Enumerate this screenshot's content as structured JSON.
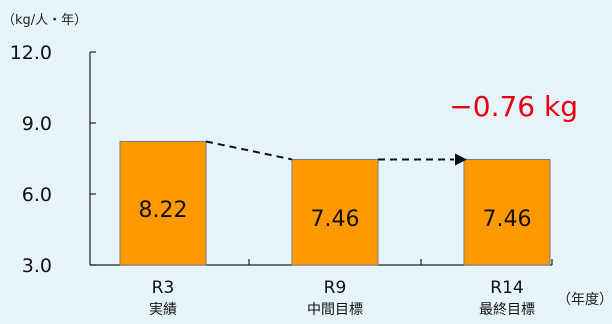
{
  "chart_data": {
    "type": "bar",
    "y_unit_label": "（kg/人・年）",
    "x_unit_label": "（年度）",
    "ylim": [
      3.0,
      12.0
    ],
    "yticks": [
      "3.0",
      "6.0",
      "9.0",
      "12.0"
    ],
    "categories": [
      {
        "label": "R3",
        "sublabel": "実績"
      },
      {
        "label": "R9",
        "sublabel": "中間目標"
      },
      {
        "label": "R14",
        "sublabel": "最終目標"
      }
    ],
    "values": [
      8.22,
      7.46,
      7.46
    ],
    "value_labels": [
      "8.22",
      "7.46",
      "7.46"
    ],
    "annotation": "−0.76 kg",
    "colors": {
      "bar": "#ff9900",
      "bar_stroke": "#7a7a7a",
      "annotation": "#e60012",
      "background": "#e6f3f8"
    }
  }
}
